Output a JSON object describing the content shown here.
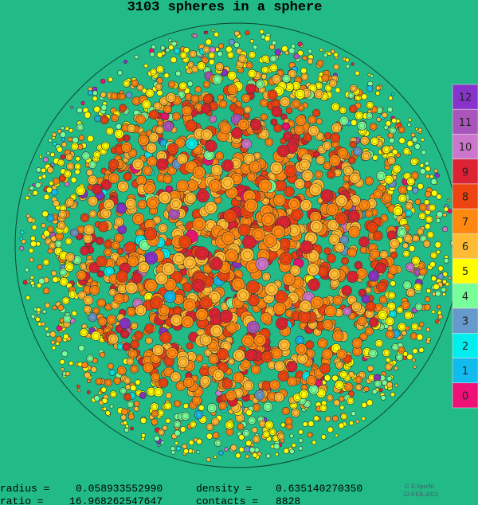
{
  "title": "3103 spheres in a sphere",
  "legend": [
    {
      "label": "12",
      "color": "#8833cc"
    },
    {
      "label": "11",
      "color": "#aa55bb"
    },
    {
      "label": "10",
      "color": "#cc77cc"
    },
    {
      "label": "9",
      "color": "#dd2233"
    },
    {
      "label": "8",
      "color": "#ee4411"
    },
    {
      "label": "7",
      "color": "#ff8811"
    },
    {
      "label": "6",
      "color": "#ffbb33"
    },
    {
      "label": "5",
      "color": "#ffff00"
    },
    {
      "label": "4",
      "color": "#77ff99"
    },
    {
      "label": "3",
      "color": "#6699cc"
    },
    {
      "label": "2",
      "color": "#00eeee"
    },
    {
      "label": "1",
      "color": "#11bbee"
    },
    {
      "label": "0",
      "color": "#ee1177"
    }
  ],
  "stats": [
    {
      "label": "radius =",
      "value": "0.058933552990"
    },
    {
      "label": "density =",
      "value": "0.635140270350"
    },
    {
      "label": "ratio =",
      "value": "16.968262547647"
    },
    {
      "label": "contacts =",
      "value": "8828"
    }
  ],
  "credit": {
    "author": "© E.Specht",
    "date": "22-FEB-2022"
  }
}
